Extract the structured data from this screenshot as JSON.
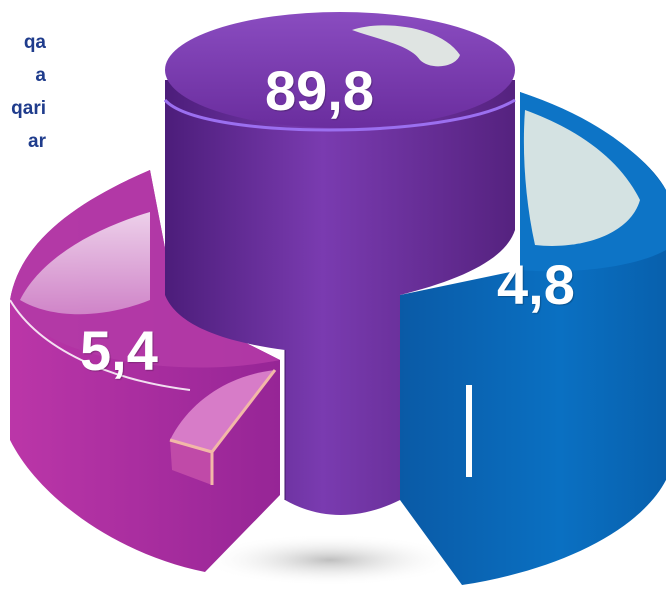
{
  "legend_lines": [
    "qa",
    "a",
    "qari",
    "ar"
  ],
  "chart_data": {
    "type": "pie",
    "style": "3d-cylinder-exploded",
    "title": "",
    "slices": [
      {
        "label": "89,8",
        "value": 89.8,
        "color": "#6b2ea0"
      },
      {
        "label": "4,8",
        "value": 4.8,
        "color": "#0a6cbd"
      },
      {
        "label": "5,4",
        "value": 5.4,
        "color": "#a52b9e"
      }
    ]
  }
}
